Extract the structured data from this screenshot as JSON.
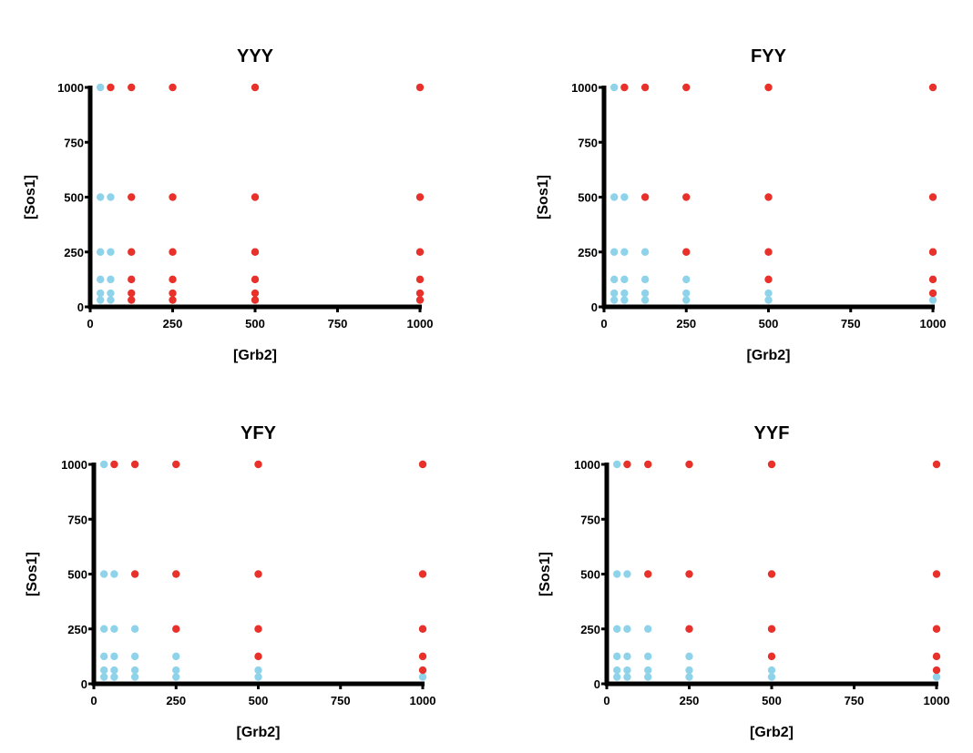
{
  "colors": {
    "positive": "#e8312a",
    "negative": "#8fd3ea",
    "axis": "#000000"
  },
  "chart_data": [
    {
      "type": "scatter",
      "title": "YYY",
      "xlabel": "[Grb2]",
      "ylabel": "[Sos1]",
      "xlim": [
        0,
        1000
      ],
      "ylim": [
        0,
        1000
      ],
      "xticks": [
        0,
        250,
        500,
        750,
        1000
      ],
      "yticks": [
        0,
        250,
        500,
        750,
        1000
      ],
      "grid": false,
      "series": [
        {
          "color": "#8fd3ea",
          "points": [
            [
              31,
              1000
            ],
            [
              31,
              500
            ],
            [
              62,
              500
            ],
            [
              31,
              250
            ],
            [
              62,
              250
            ],
            [
              31,
              125
            ],
            [
              62,
              125
            ],
            [
              31,
              62
            ],
            [
              62,
              62
            ],
            [
              31,
              31
            ],
            [
              62,
              31
            ]
          ]
        },
        {
          "color": "#e8312a",
          "points": [
            [
              62,
              1000
            ],
            [
              125,
              1000
            ],
            [
              250,
              1000
            ],
            [
              500,
              1000
            ],
            [
              1000,
              1000
            ],
            [
              125,
              500
            ],
            [
              250,
              500
            ],
            [
              500,
              500
            ],
            [
              1000,
              500
            ],
            [
              125,
              250
            ],
            [
              250,
              250
            ],
            [
              500,
              250
            ],
            [
              1000,
              250
            ],
            [
              125,
              125
            ],
            [
              250,
              125
            ],
            [
              500,
              125
            ],
            [
              1000,
              125
            ],
            [
              125,
              62
            ],
            [
              250,
              62
            ],
            [
              500,
              62
            ],
            [
              1000,
              62
            ],
            [
              125,
              31
            ],
            [
              250,
              31
            ],
            [
              500,
              31
            ],
            [
              1000,
              31
            ]
          ]
        }
      ]
    },
    {
      "type": "scatter",
      "title": "FYY",
      "xlabel": "[Grb2]",
      "ylabel": "[Sos1]",
      "xlim": [
        0,
        1000
      ],
      "ylim": [
        0,
        1000
      ],
      "xticks": [
        0,
        250,
        500,
        750,
        1000
      ],
      "yticks": [
        0,
        250,
        500,
        750,
        1000
      ],
      "grid": false,
      "series": [
        {
          "color": "#8fd3ea",
          "points": [
            [
              31,
              1000
            ],
            [
              31,
              500
            ],
            [
              62,
              500
            ],
            [
              31,
              250
            ],
            [
              62,
              250
            ],
            [
              125,
              250
            ],
            [
              31,
              125
            ],
            [
              62,
              125
            ],
            [
              125,
              125
            ],
            [
              250,
              125
            ],
            [
              31,
              62
            ],
            [
              62,
              62
            ],
            [
              125,
              62
            ],
            [
              250,
              62
            ],
            [
              500,
              62
            ],
            [
              31,
              31
            ],
            [
              62,
              31
            ],
            [
              125,
              31
            ],
            [
              250,
              31
            ],
            [
              500,
              31
            ],
            [
              1000,
              31
            ]
          ]
        },
        {
          "color": "#e8312a",
          "points": [
            [
              62,
              1000
            ],
            [
              125,
              1000
            ],
            [
              250,
              1000
            ],
            [
              500,
              1000
            ],
            [
              1000,
              1000
            ],
            [
              125,
              500
            ],
            [
              250,
              500
            ],
            [
              500,
              500
            ],
            [
              1000,
              500
            ],
            [
              250,
              250
            ],
            [
              500,
              250
            ],
            [
              1000,
              250
            ],
            [
              500,
              125
            ],
            [
              1000,
              125
            ],
            [
              1000,
              62
            ]
          ]
        }
      ]
    },
    {
      "type": "scatter",
      "title": "YFY",
      "xlabel": "[Grb2]",
      "ylabel": "[Sos1]",
      "xlim": [
        0,
        1000
      ],
      "ylim": [
        0,
        1000
      ],
      "xticks": [
        0,
        250,
        500,
        750,
        1000
      ],
      "yticks": [
        0,
        250,
        500,
        750,
        1000
      ],
      "grid": false,
      "series": [
        {
          "color": "#8fd3ea",
          "points": [
            [
              31,
              1000
            ],
            [
              31,
              500
            ],
            [
              62,
              500
            ],
            [
              31,
              250
            ],
            [
              62,
              250
            ],
            [
              125,
              250
            ],
            [
              31,
              125
            ],
            [
              62,
              125
            ],
            [
              125,
              125
            ],
            [
              250,
              125
            ],
            [
              31,
              62
            ],
            [
              62,
              62
            ],
            [
              125,
              62
            ],
            [
              250,
              62
            ],
            [
              500,
              62
            ],
            [
              31,
              31
            ],
            [
              62,
              31
            ],
            [
              125,
              31
            ],
            [
              250,
              31
            ],
            [
              500,
              31
            ],
            [
              1000,
              31
            ]
          ]
        },
        {
          "color": "#e8312a",
          "points": [
            [
              62,
              1000
            ],
            [
              125,
              1000
            ],
            [
              250,
              1000
            ],
            [
              500,
              1000
            ],
            [
              1000,
              1000
            ],
            [
              125,
              500
            ],
            [
              250,
              500
            ],
            [
              500,
              500
            ],
            [
              1000,
              500
            ],
            [
              250,
              250
            ],
            [
              500,
              250
            ],
            [
              1000,
              250
            ],
            [
              500,
              125
            ],
            [
              1000,
              125
            ],
            [
              1000,
              62
            ]
          ]
        }
      ]
    },
    {
      "type": "scatter",
      "title": "YYF",
      "xlabel": "[Grb2]",
      "ylabel": "[Sos1]",
      "xlim": [
        0,
        1000
      ],
      "ylim": [
        0,
        1000
      ],
      "xticks": [
        0,
        250,
        500,
        750,
        1000
      ],
      "yticks": [
        0,
        250,
        500,
        750,
        1000
      ],
      "grid": false,
      "series": [
        {
          "color": "#8fd3ea",
          "points": [
            [
              31,
              1000
            ],
            [
              31,
              500
            ],
            [
              62,
              500
            ],
            [
              31,
              250
            ],
            [
              62,
              250
            ],
            [
              125,
              250
            ],
            [
              31,
              125
            ],
            [
              62,
              125
            ],
            [
              125,
              125
            ],
            [
              250,
              125
            ],
            [
              31,
              62
            ],
            [
              62,
              62
            ],
            [
              125,
              62
            ],
            [
              250,
              62
            ],
            [
              500,
              62
            ],
            [
              31,
              31
            ],
            [
              62,
              31
            ],
            [
              125,
              31
            ],
            [
              250,
              31
            ],
            [
              500,
              31
            ],
            [
              1000,
              31
            ]
          ]
        },
        {
          "color": "#e8312a",
          "points": [
            [
              62,
              1000
            ],
            [
              125,
              1000
            ],
            [
              250,
              1000
            ],
            [
              500,
              1000
            ],
            [
              1000,
              1000
            ],
            [
              125,
              500
            ],
            [
              250,
              500
            ],
            [
              500,
              500
            ],
            [
              1000,
              500
            ],
            [
              250,
              250
            ],
            [
              500,
              250
            ],
            [
              1000,
              250
            ],
            [
              500,
              125
            ],
            [
              1000,
              125
            ],
            [
              1000,
              62
            ]
          ]
        }
      ]
    }
  ]
}
